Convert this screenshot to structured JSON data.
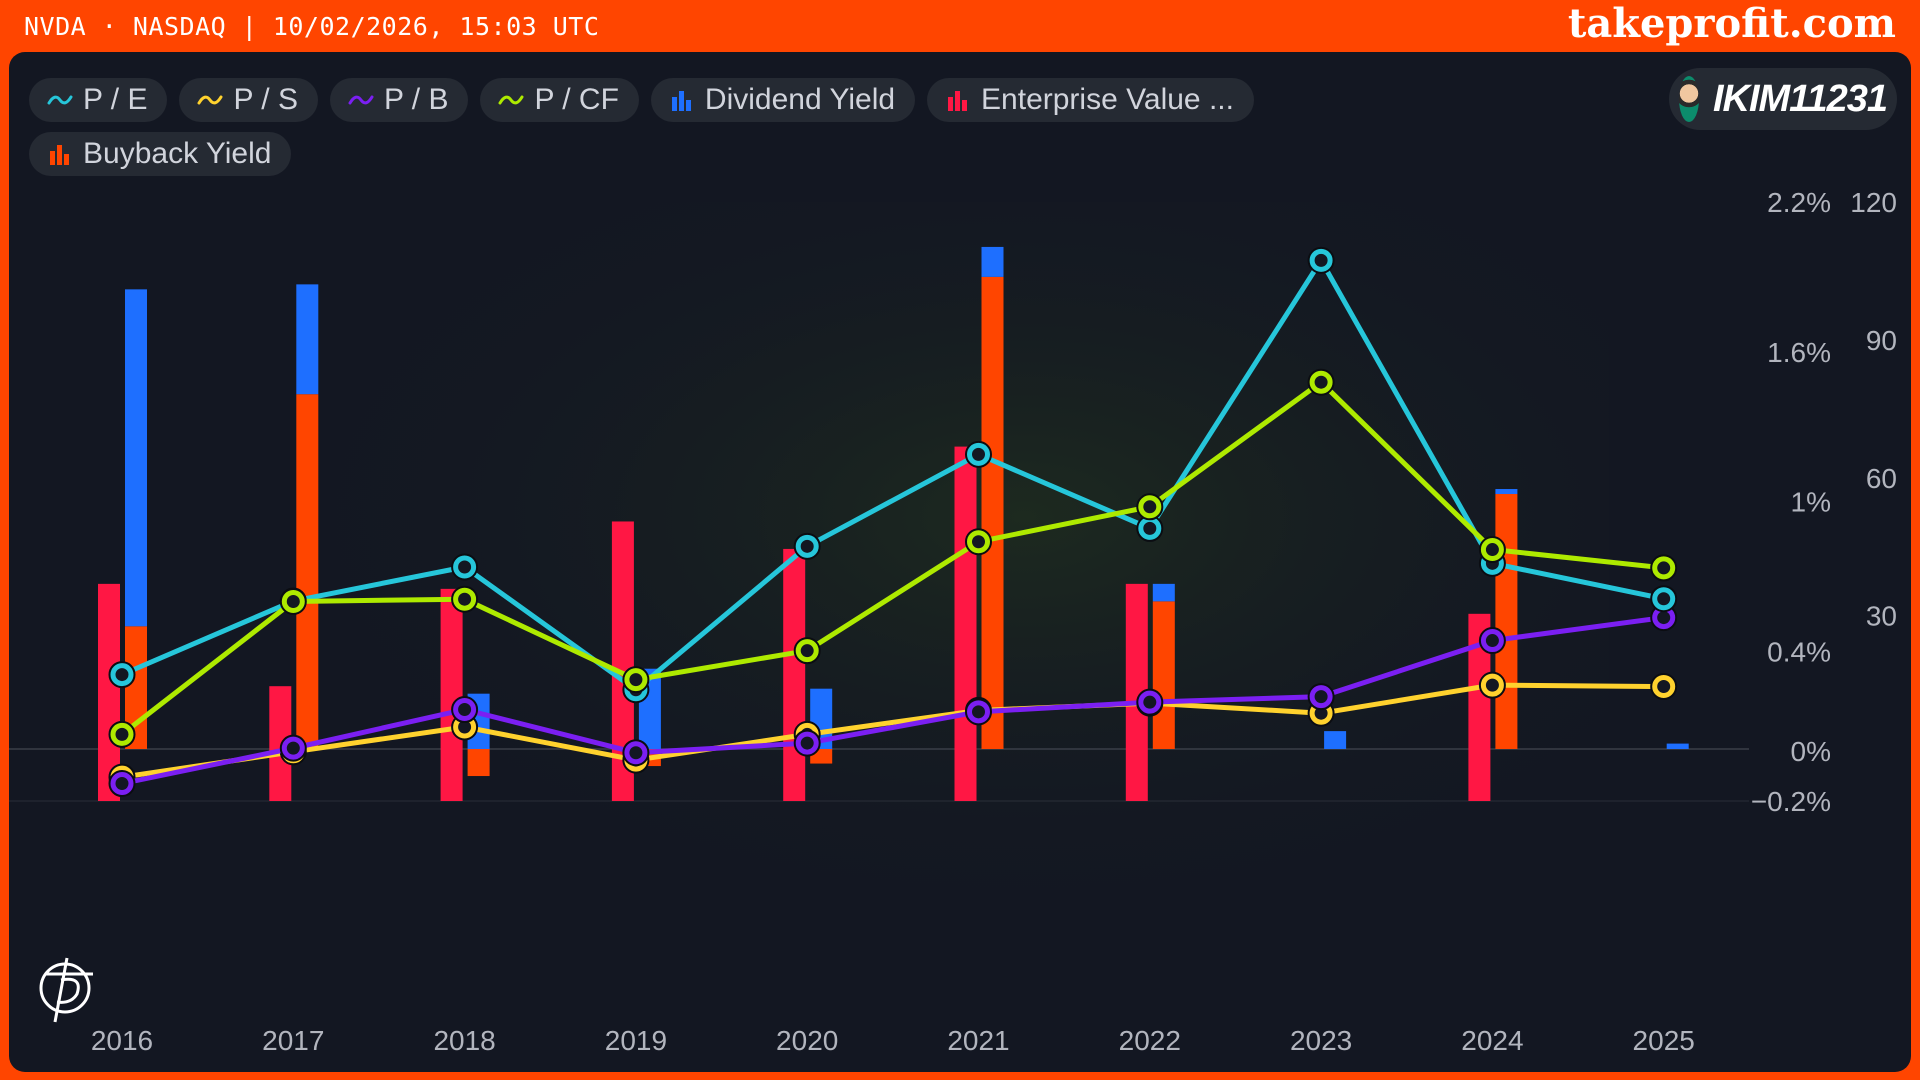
{
  "header": {
    "ticker": "NVDA · NASDAQ | 10/02/2026, 15:03 UTC",
    "brand": "takeprofit.com"
  },
  "user": {
    "name": "IKIM11231",
    "avatar_icon": "user-avatar"
  },
  "legend": [
    {
      "label": "P / E",
      "icon": "line-icon",
      "color": "#26C6DA"
    },
    {
      "label": "P / S",
      "icon": "line-icon",
      "color": "#FFD22E"
    },
    {
      "label": "P / B",
      "icon": "line-icon",
      "color": "#7B1FF2"
    },
    {
      "label": "P / CF",
      "icon": "line-icon",
      "color": "#AEEA00"
    },
    {
      "label": "Dividend Yield",
      "icon": "bar-icon",
      "color": "#1E6FFF"
    },
    {
      "label": "Enterprise Value ...",
      "icon": "bar-icon",
      "color": "#FF1744"
    },
    {
      "label": "Buyback Yield",
      "icon": "bar-icon",
      "color": "#FF4500"
    }
  ],
  "chart_data": {
    "type": "bar",
    "categories": [
      "2016",
      "2017",
      "2018",
      "2019",
      "2020",
      "2021",
      "2022",
      "2023",
      "2024",
      "2025"
    ],
    "x_tick_labels": [
      "2016",
      "2017",
      "2018",
      "2019",
      "2020",
      "2021",
      "2022",
      "2023",
      "2024",
      "2025"
    ],
    "left_axis": {
      "tick_labels": [
        "2.2%",
        "1.6%",
        "1%",
        "0.4%",
        "0%",
        "−0.2%"
      ],
      "ticks": [
        2.2,
        1.6,
        1.0,
        0.4,
        0,
        -0.2
      ],
      "range": [
        -0.2,
        2.2
      ]
    },
    "right_axis": {
      "tick_labels": [
        "120",
        "90",
        "60",
        "30"
      ],
      "ticks": [
        120,
        90,
        60,
        30
      ],
      "range": [
        -10.3,
        120
      ]
    },
    "grid": "zero-line only",
    "legend_position": "top-left",
    "series": [
      {
        "name": "P / E",
        "type": "line",
        "axis": "right",
        "color": "#26C6DA",
        "values": [
          17.2,
          33.2,
          40.6,
          13.9,
          45.1,
          65.1,
          49.0,
          107.3,
          41.4,
          33.7
        ]
      },
      {
        "name": "P / S",
        "type": "line",
        "axis": "right",
        "color": "#FFD22E",
        "values": [
          -5.1,
          0.4,
          5.8,
          -1.4,
          4.2,
          9.4,
          11.0,
          8.8,
          14.9,
          14.6
        ]
      },
      {
        "name": "P / B",
        "type": "line",
        "axis": "right",
        "color": "#7B1FF2",
        "values": [
          -6.5,
          1.2,
          9.6,
          0.2,
          2.3,
          9.1,
          11.2,
          12.4,
          24.6,
          29.6
        ]
      },
      {
        "name": "P / CF",
        "type": "line",
        "axis": "right",
        "color": "#AEEA00",
        "values": [
          4.2,
          33.1,
          33.6,
          16.1,
          22.4,
          46.1,
          53.7,
          80.8,
          44.4,
          40.4
        ]
      },
      {
        "name": "Dividend Yield",
        "type": "bar",
        "axis": "left",
        "color": "#1E6FFF",
        "values": [
          1.85,
          1.87,
          0.23,
          0.33,
          0.25,
          2.02,
          0.67,
          0.08,
          1.05,
          0.03
        ]
      },
      {
        "name": "Enterprise Value ...",
        "type": "bar",
        "axis": "left",
        "color": "#FF1744",
        "values": [
          -0.2,
          -0.2,
          -0.2,
          -0.2,
          -0.2,
          -0.2,
          -0.2,
          null,
          -0.2,
          null
        ],
        "top_values": [
          0.67,
          0.26,
          0.65,
          0.92,
          0.81,
          1.22,
          0.67,
          null,
          0.55,
          null
        ]
      },
      {
        "name": "Buyback Yield",
        "type": "bar",
        "axis": "left",
        "color": "#FF4500",
        "values": [
          0.5,
          1.43,
          -0.1,
          -0.06,
          -0.05,
          1.9,
          0.6,
          null,
          1.03,
          null
        ]
      }
    ]
  }
}
